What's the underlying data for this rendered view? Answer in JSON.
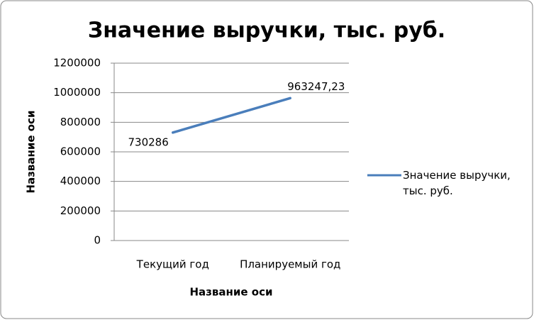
{
  "chart_data": {
    "type": "line",
    "title": "Значение выручки, тыс. руб.",
    "x_label": "Название оси",
    "y_label": "Название оси",
    "categories": [
      "Текущий год",
      "Планируемый год"
    ],
    "series": [
      {
        "name": "Значение выручки, тыс. руб.",
        "color": "#4a7ebb",
        "values": [
          730286,
          963247.23
        ],
        "value_labels": [
          "730286",
          "963247,23"
        ]
      }
    ],
    "ylim": [
      0,
      1200000
    ],
    "yticks": [
      0,
      200000,
      400000,
      600000,
      800000,
      1000000,
      1200000
    ],
    "grid": true,
    "legend": "right"
  }
}
